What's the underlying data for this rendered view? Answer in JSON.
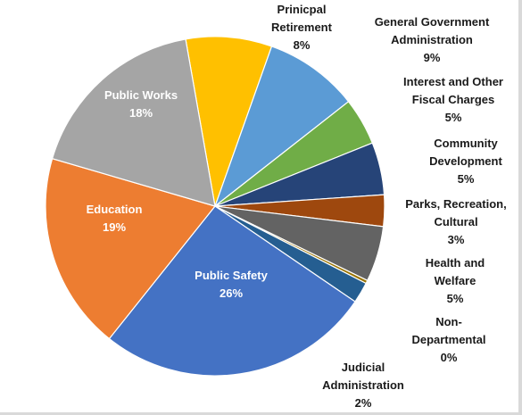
{
  "chart_data": {
    "type": "pie",
    "title": "",
    "start_category": "Prinicpal Retirement",
    "slices": [
      {
        "name": "Prinicpal Retirement",
        "label_lines": [
          "Prinicpal",
          "Retirement"
        ],
        "pct_label": "8%",
        "value": 8.2,
        "color": "#ffc000"
      },
      {
        "name": "General Government Administration",
        "label_lines": [
          "General Government",
          "Administration"
        ],
        "pct_label": "9%",
        "value": 9.0,
        "color": "#5b9bd5"
      },
      {
        "name": "Interest and Other Fiscal Charges",
        "label_lines": [
          "Interest and Other",
          "Fiscal Charges"
        ],
        "pct_label": "5%",
        "value": 4.5,
        "color": "#70ad47"
      },
      {
        "name": "Community Development",
        "label_lines": [
          "Community",
          "Development"
        ],
        "pct_label": "5%",
        "value": 5.0,
        "color": "#264478"
      },
      {
        "name": "Parks, Recreation, Cultural",
        "label_lines": [
          "Parks, Recreation,",
          "Cultural"
        ],
        "pct_label": "3%",
        "value": 3.0,
        "color": "#9e480e"
      },
      {
        "name": "Health and Welfare",
        "label_lines": [
          "Health and",
          "Welfare"
        ],
        "pct_label": "5%",
        "value": 5.3,
        "color": "#636363"
      },
      {
        "name": "Non-Departmental",
        "label_lines": [
          "Non-",
          "Departmental"
        ],
        "pct_label": "0%",
        "value": 0.3,
        "color": "#997300"
      },
      {
        "name": "Judicial Administration",
        "label_lines": [
          "Judicial",
          "Administration"
        ],
        "pct_label": "2%",
        "value": 2.0,
        "color": "#255e91"
      },
      {
        "name": "Public Safety",
        "label_lines": [
          "Public Safety"
        ],
        "pct_label": "26%",
        "value": 26.2,
        "color": "#4472c4"
      },
      {
        "name": "Education",
        "label_lines": [
          "Education"
        ],
        "pct_label": "19%",
        "value": 18.8,
        "color": "#ed7d31"
      },
      {
        "name": "Public Works",
        "label_lines": [
          "Public Works"
        ],
        "pct_label": "18%",
        "value": 17.7,
        "color": "#a5a5a5"
      }
    ]
  }
}
